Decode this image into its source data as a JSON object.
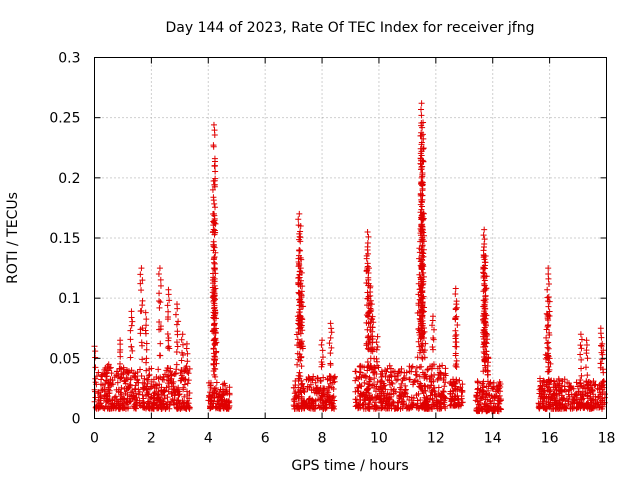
{
  "chart_data": {
    "type": "scatter",
    "title": "Day 144 of 2023, Rate Of TEC Index for receiver jfng",
    "xlabel": "GPS time / hours",
    "ylabel": "ROTI / TECUs",
    "xlim": [
      0,
      18
    ],
    "ylim": [
      0,
      0.3
    ],
    "xticks": [
      0,
      2,
      4,
      6,
      8,
      10,
      12,
      14,
      16,
      18
    ],
    "xtick_labels": [
      "0",
      "2",
      "4",
      "6",
      "8",
      "10",
      "12",
      "14",
      "16",
      "18"
    ],
    "yticks": [
      0,
      0.05,
      0.1,
      0.15,
      0.2,
      0.25,
      0.3
    ],
    "ytick_labels": [
      "0",
      "0.05",
      "0.1",
      "0.15",
      "0.2",
      "0.25",
      "0.3"
    ],
    "grid": true,
    "marker": "+",
    "color": "#e00000",
    "segments": [
      {
        "t0": 0.0,
        "t1": 3.35,
        "base": [
          0.008,
          0.038
        ],
        "peaks": [
          [
            0.0,
            0.06
          ],
          [
            0.5,
            0.045
          ],
          [
            0.9,
            0.065
          ],
          [
            1.3,
            0.089
          ],
          [
            1.65,
            0.125
          ],
          [
            1.8,
            0.088
          ],
          [
            2.3,
            0.125
          ],
          [
            2.6,
            0.107
          ],
          [
            2.9,
            0.095
          ],
          [
            3.1,
            0.07
          ],
          [
            3.25,
            0.062
          ]
        ]
      },
      {
        "t0": 4.0,
        "t1": 4.75,
        "base": [
          0.008,
          0.028
        ],
        "peaks": [
          [
            4.2,
            0.244
          ],
          [
            4.22,
            0.21
          ],
          [
            4.2,
            0.17
          ],
          [
            4.2,
            0.125
          ],
          [
            4.25,
            0.108
          ],
          [
            4.25,
            0.088
          ],
          [
            4.22,
            0.066
          ]
        ]
      },
      {
        "t0": 7.0,
        "t1": 8.45,
        "base": [
          0.008,
          0.032
        ],
        "peaks": [
          [
            7.2,
            0.17
          ],
          [
            7.25,
            0.16
          ],
          [
            7.2,
            0.14
          ],
          [
            7.25,
            0.125
          ],
          [
            7.3,
            0.11
          ],
          [
            7.15,
            0.085
          ],
          [
            8.0,
            0.065
          ],
          [
            8.3,
            0.079
          ]
        ]
      },
      {
        "t0": 9.15,
        "t1": 12.35,
        "base": [
          0.008,
          0.04
        ],
        "peaks": [
          [
            9.6,
            0.155
          ],
          [
            9.6,
            0.14
          ],
          [
            9.65,
            0.125
          ],
          [
            9.7,
            0.11
          ],
          [
            9.75,
            0.095
          ],
          [
            9.8,
            0.08
          ],
          [
            9.95,
            0.068
          ],
          [
            11.5,
            0.262
          ],
          [
            11.55,
            0.246
          ],
          [
            11.5,
            0.235
          ],
          [
            11.5,
            0.222
          ],
          [
            11.5,
            0.2
          ],
          [
            11.55,
            0.165
          ],
          [
            11.45,
            0.147
          ],
          [
            11.4,
            0.112
          ],
          [
            11.5,
            0.1
          ],
          [
            11.9,
            0.085
          ],
          [
            11.6,
            0.072
          ]
        ]
      },
      {
        "t0": 12.5,
        "t1": 12.95,
        "base": [
          0.01,
          0.03
        ],
        "peaks": [
          [
            12.7,
            0.108
          ],
          [
            12.72,
            0.095
          ]
        ]
      },
      {
        "t0": 13.4,
        "t1": 14.3,
        "base": [
          0.006,
          0.028
        ],
        "peaks": [
          [
            13.7,
            0.157
          ],
          [
            13.7,
            0.145
          ],
          [
            13.75,
            0.135
          ],
          [
            13.7,
            0.125
          ],
          [
            13.75,
            0.102
          ],
          [
            13.7,
            0.085
          ],
          [
            13.8,
            0.07
          ],
          [
            13.85,
            0.05
          ]
        ]
      },
      {
        "t0": 15.6,
        "t1": 17.95,
        "base": [
          0.008,
          0.03
        ],
        "peaks": [
          [
            15.95,
            0.125
          ],
          [
            15.97,
            0.101
          ],
          [
            15.9,
            0.087
          ],
          [
            16.0,
            0.05
          ],
          [
            17.1,
            0.07
          ],
          [
            17.3,
            0.065
          ],
          [
            17.8,
            0.075
          ],
          [
            17.85,
            0.062
          ]
        ]
      }
    ]
  }
}
